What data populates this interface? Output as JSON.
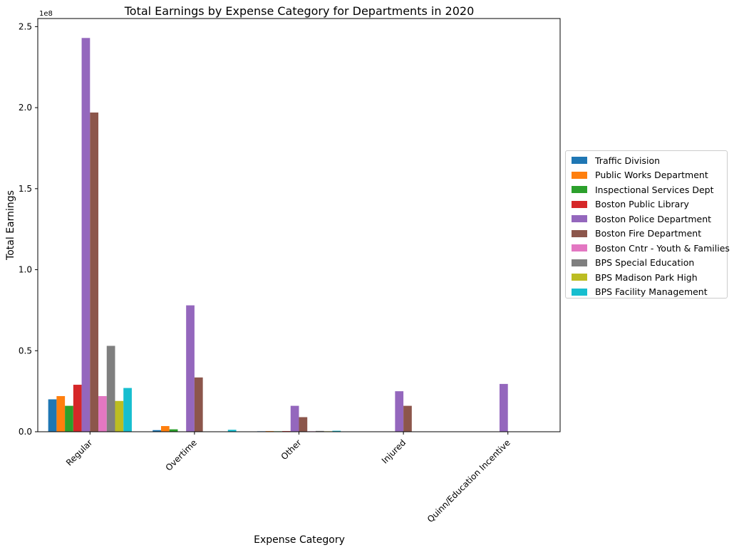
{
  "chart_data": {
    "type": "bar",
    "title": "Total Earnings by Expense Category for Departments in 2020",
    "xlabel": "Expense Category",
    "ylabel": "Total Earnings",
    "y_offset_label": "1e8",
    "ylim": [
      0,
      2.55
    ],
    "y_scale_note": "values in units of 1e8",
    "yticks": [
      "0.0",
      "0.5",
      "1.0",
      "1.5",
      "2.0",
      "2.5"
    ],
    "categories": [
      "Regular",
      "Overtime",
      "Other",
      "Injured",
      "Quinn/Education Incentive"
    ],
    "grid": false,
    "legend_position": "right",
    "series": [
      {
        "name": "Traffic Division",
        "color": "#1f77b4",
        "values": [
          0.2,
          0.01,
          0.003,
          0,
          0
        ]
      },
      {
        "name": "Public Works Department",
        "color": "#ff7f0e",
        "values": [
          0.22,
          0.035,
          0.004,
          0,
          0
        ]
      },
      {
        "name": "Inspectional Services Dept",
        "color": "#2ca02c",
        "values": [
          0.16,
          0.015,
          0.003,
          0,
          0
        ]
      },
      {
        "name": "Boston Public Library",
        "color": "#d62728",
        "values": [
          0.29,
          0.002,
          0.004,
          0,
          0
        ]
      },
      {
        "name": "Boston Police Department",
        "color": "#9467bd",
        "values": [
          2.43,
          0.78,
          0.16,
          0.25,
          0.295
        ]
      },
      {
        "name": "Boston Fire Department",
        "color": "#8c564b",
        "values": [
          1.97,
          0.335,
          0.09,
          0.16,
          0
        ]
      },
      {
        "name": "Boston Cntr - Youth & Families",
        "color": "#e377c2",
        "values": [
          0.22,
          0.002,
          0.003,
          0,
          0
        ]
      },
      {
        "name": "BPS Special Education",
        "color": "#7f7f7f",
        "values": [
          0.53,
          0.001,
          0.005,
          0,
          0
        ]
      },
      {
        "name": "BPS Madison Park High",
        "color": "#bcbd22",
        "values": [
          0.19,
          0.001,
          0.003,
          0,
          0
        ]
      },
      {
        "name": "BPS Facility Management",
        "color": "#17becf",
        "values": [
          0.27,
          0.012,
          0.006,
          0,
          0
        ]
      }
    ]
  }
}
